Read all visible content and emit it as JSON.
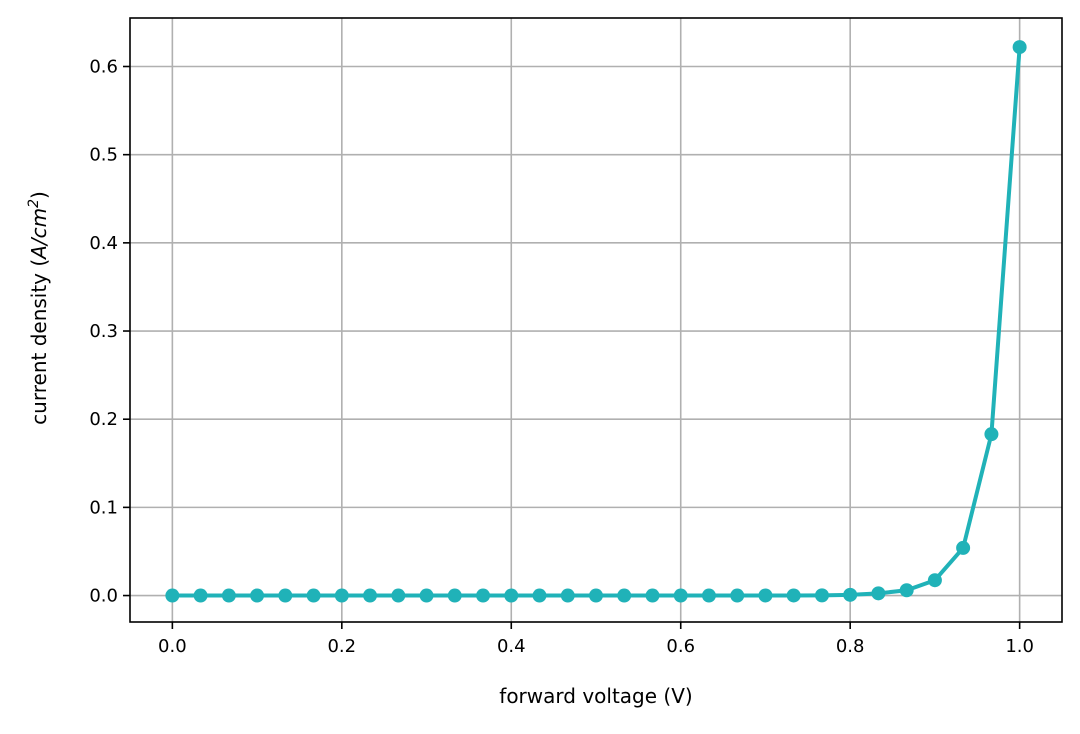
{
  "chart_data": {
    "type": "line",
    "title": "",
    "xlabel": "forward voltage (V)",
    "ylabel_prefix": "current density (",
    "ylabel_math": "A/cm",
    "ylabel_sup": "2",
    "ylabel_suffix": ")",
    "xlim": [
      -0.05,
      1.05
    ],
    "ylim": [
      -0.03,
      0.655
    ],
    "xticks": [
      0.0,
      0.2,
      0.4,
      0.6,
      0.8,
      1.0
    ],
    "xtick_labels": [
      "0.0",
      "0.2",
      "0.4",
      "0.6",
      "0.8",
      "1.0"
    ],
    "yticks": [
      0.0,
      0.1,
      0.2,
      0.3,
      0.4,
      0.5,
      0.6
    ],
    "ytick_labels": [
      "0.0",
      "0.1",
      "0.2",
      "0.3",
      "0.4",
      "0.5",
      "0.6"
    ],
    "grid": true,
    "color": "#20b2b8",
    "marker": "circle",
    "x": [
      0.0,
      0.0333,
      0.0667,
      0.1,
      0.1333,
      0.1667,
      0.2,
      0.2333,
      0.2667,
      0.3,
      0.3333,
      0.3667,
      0.4,
      0.4333,
      0.4667,
      0.5,
      0.5333,
      0.5667,
      0.6,
      0.6333,
      0.6667,
      0.7,
      0.7333,
      0.7667,
      0.8,
      0.8333,
      0.8667,
      0.9,
      0.9333,
      0.9667,
      1.0
    ],
    "y": [
      0,
      0,
      0,
      0,
      0,
      0,
      0,
      0,
      0,
      0,
      0,
      0,
      0,
      0,
      0,
      0,
      0,
      0,
      0,
      0,
      0,
      0.0001,
      0.0001,
      0.0002,
      0.0008,
      0.0025,
      0.006,
      0.0174,
      0.054,
      0.183,
      0.622
    ]
  }
}
